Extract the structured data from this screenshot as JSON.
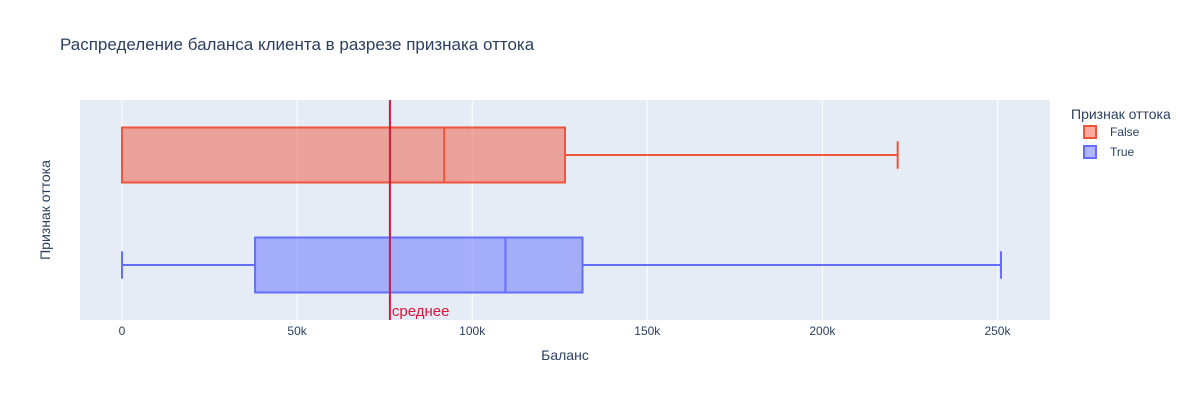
{
  "chart_data": {
    "type": "box",
    "orientation": "horizontal",
    "title": "Распределение баланса клиента в разрезе признака оттока",
    "xlabel": "Баланс",
    "ylabel": "Признак оттока",
    "xlim": [
      -12000,
      265000
    ],
    "x_ticks": [
      0,
      50000,
      100000,
      150000,
      200000,
      250000
    ],
    "x_tick_labels": [
      "0",
      "50k",
      "100k",
      "150k",
      "200k",
      "250k"
    ],
    "grid": true,
    "legend": {
      "title": "Признак оттока",
      "position": "right"
    },
    "series": [
      {
        "name": "False",
        "color": "#EF553B",
        "min": 0,
        "q1": 0,
        "median": 92000,
        "q3": 126500,
        "max": 221500
      },
      {
        "name": "True",
        "color": "#636EFA",
        "min": 0,
        "q1": 38000,
        "median": 109500,
        "q3": 131500,
        "max": 251000
      }
    ],
    "reference_line": {
      "x": 76500,
      "label": "среднее",
      "color": "#DC143C"
    },
    "plot_background": "#E5ECF6"
  }
}
